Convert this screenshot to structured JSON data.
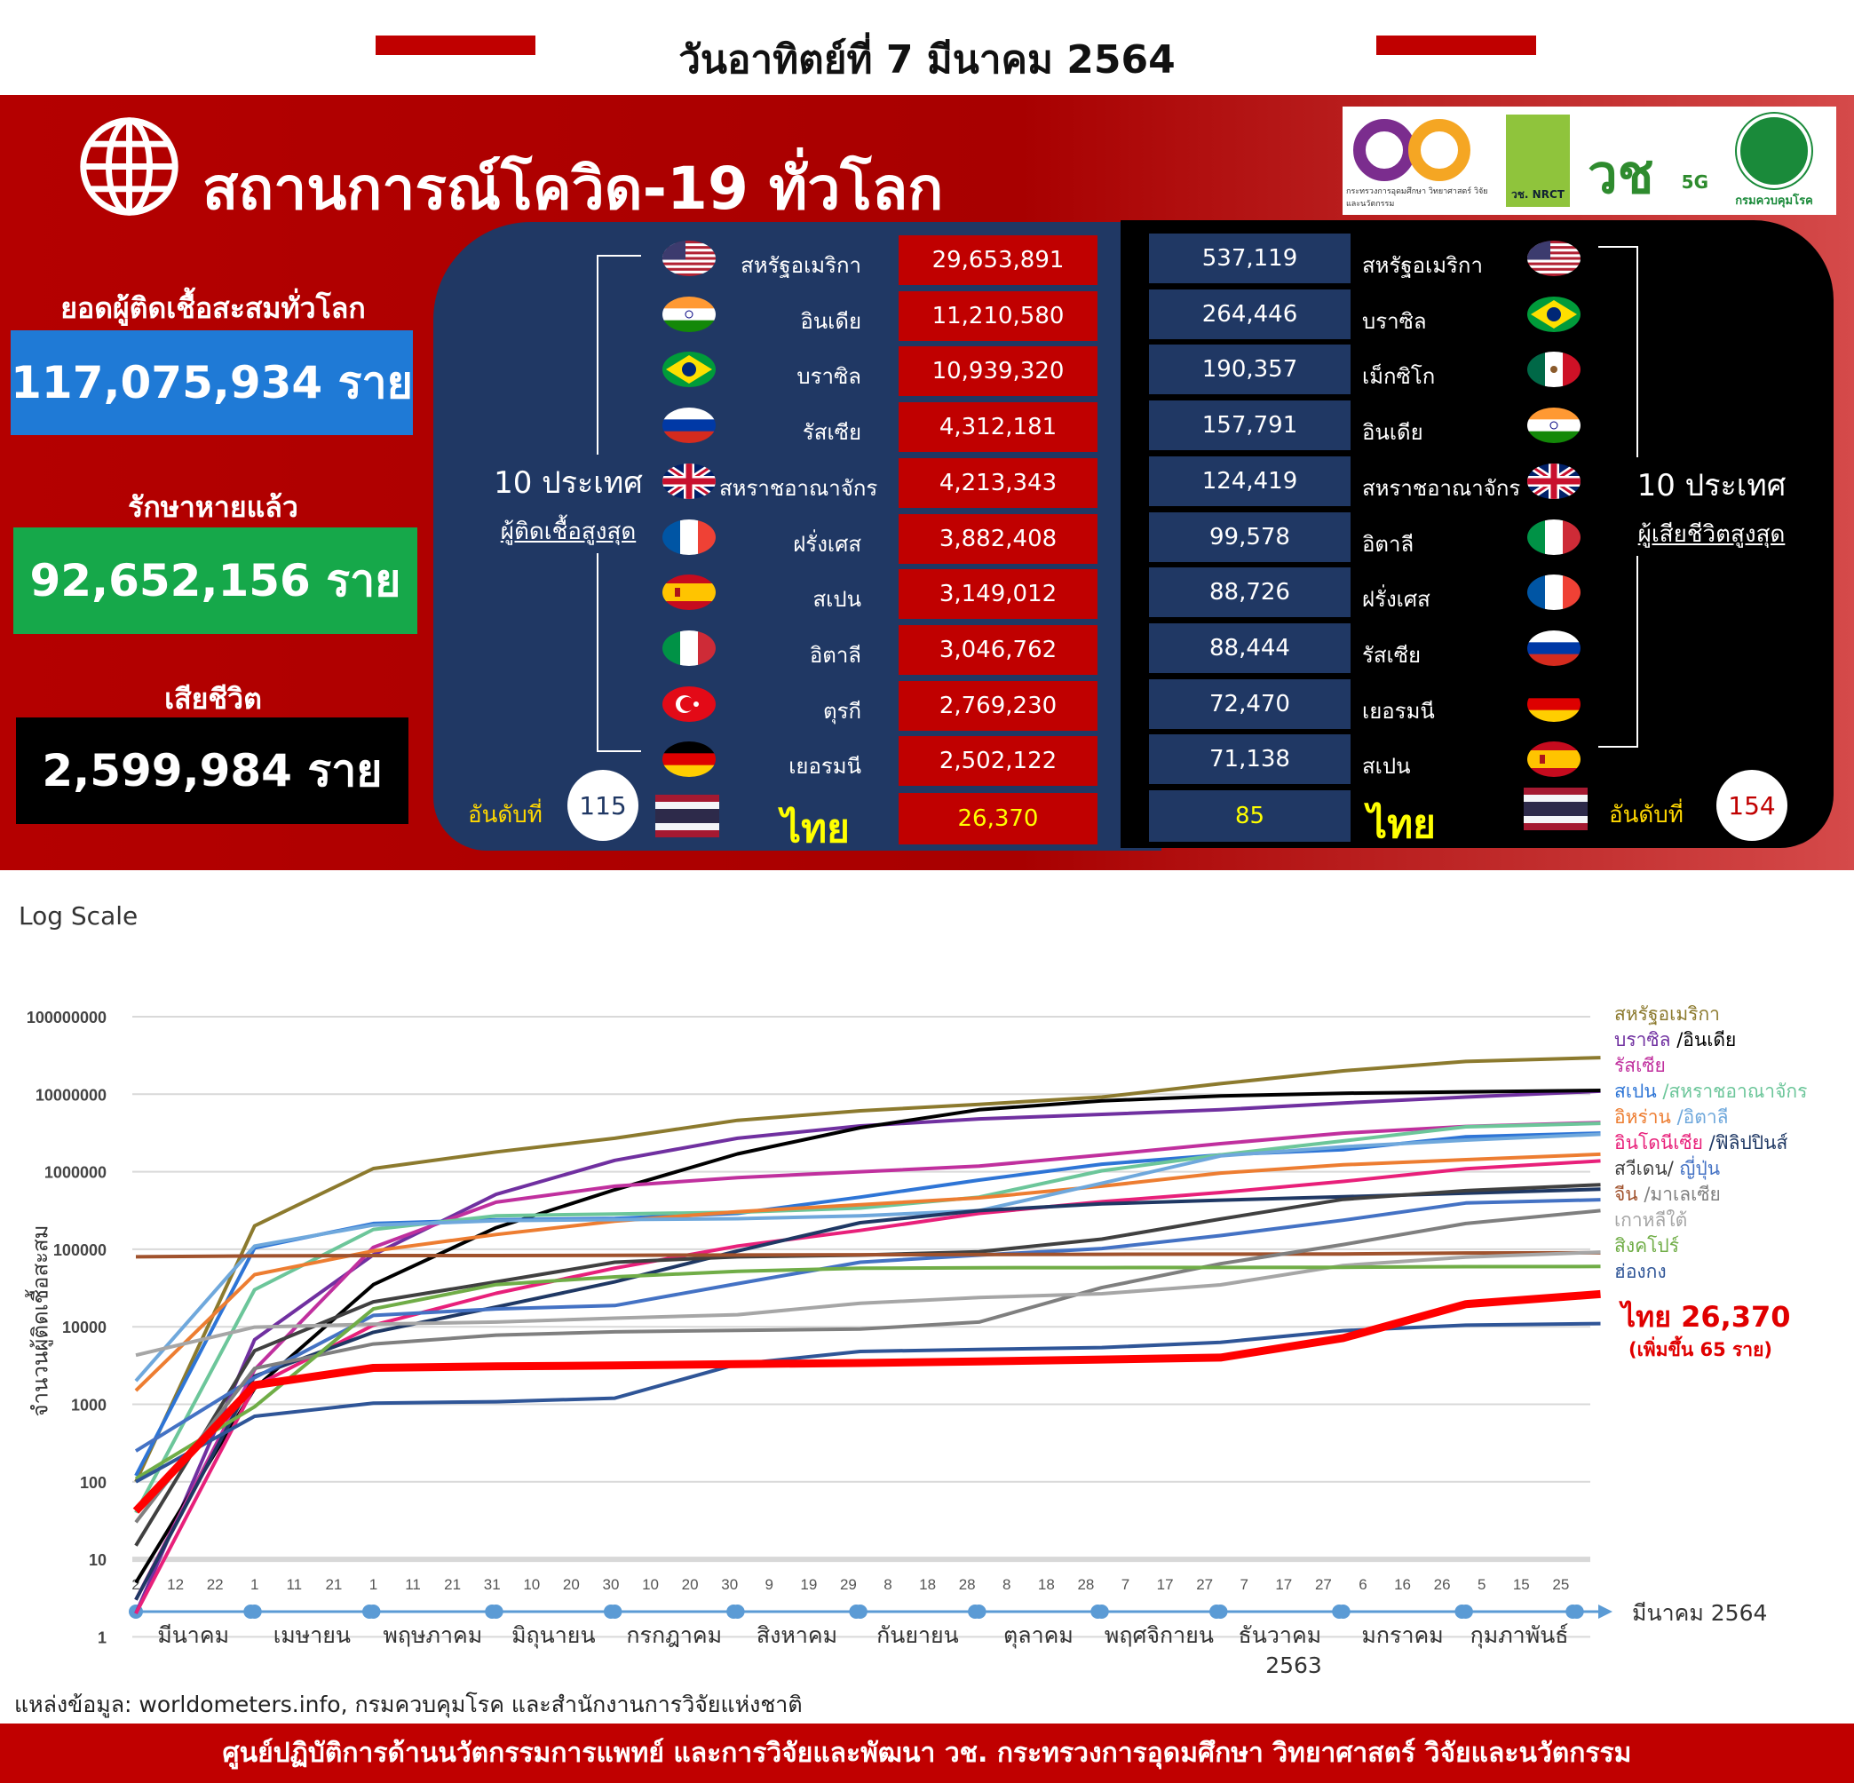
{
  "header": {
    "date": "วันอาทิตย์ที่ 7 มีนาคม 2564",
    "title": "สถานการณ์โควิด-19 ทั่วโลก",
    "accent": "#c00000"
  },
  "logos": {
    "mhesi": "กระทรวงการอุดมศึกษา วิทยาศาสตร์ วิจัยและนวัตกรรม",
    "nrct": "วช. NRCT",
    "v5g": "5G",
    "ddc": "กรมควบคุมโรค"
  },
  "world": {
    "cases_label": "ยอดผู้ติดเชื้อสะสมทั่วโลก",
    "cases": "117,075,934 ราย",
    "cases_color": "#1f7ad6",
    "recovered_label": "รักษาหายแล้ว",
    "recovered": "92,652,156 ราย",
    "recovered_color": "#16a84a",
    "deaths_label": "เสียชีวิต",
    "deaths": "2,599,984 ราย",
    "deaths_color": "#000000"
  },
  "top_cases": {
    "label_line1": "10 ประเทศ",
    "label_line2": "ผู้ติดเชื้อสูงสุด",
    "rows": [
      {
        "country": "สหรัฐอเมริกา",
        "flag": "us",
        "value": "29,653,891"
      },
      {
        "country": "อินเดีย",
        "flag": "in",
        "value": "11,210,580"
      },
      {
        "country": "บราซิล",
        "flag": "br",
        "value": "10,939,320"
      },
      {
        "country": "รัสเซีย",
        "flag": "ru",
        "value": "4,312,181"
      },
      {
        "country": "สหราชอาณาจักร",
        "flag": "gb",
        "value": "4,213,343"
      },
      {
        "country": "ฝรั่งเศส",
        "flag": "fr",
        "value": "3,882,408"
      },
      {
        "country": "สเปน",
        "flag": "es",
        "value": "3,149,012"
      },
      {
        "country": "อิตาลี",
        "flag": "it",
        "value": "3,046,762"
      },
      {
        "country": "ตุรกี",
        "flag": "tr",
        "value": "2,769,230"
      },
      {
        "country": "เยอรมนี",
        "flag": "de",
        "value": "2,502,122"
      }
    ],
    "thai": {
      "rank_label": "อันดับที่",
      "rank": "115",
      "country": "ไทย",
      "value": "26,370"
    }
  },
  "top_deaths": {
    "label_line1": "10 ประเทศ",
    "label_line2": "ผู้เสียชีวิตสูงสุด",
    "rows": [
      {
        "country": "สหรัฐอเมริกา",
        "flag": "us",
        "value": "537,119"
      },
      {
        "country": "บราซิล",
        "flag": "br",
        "value": "264,446"
      },
      {
        "country": "เม็กซิโก",
        "flag": "mx",
        "value": "190,357"
      },
      {
        "country": "อินเดีย",
        "flag": "in",
        "value": "157,791"
      },
      {
        "country": "สหราชอาณาจักร",
        "flag": "gb",
        "value": "124,419"
      },
      {
        "country": "อิตาลี",
        "flag": "it",
        "value": "99,578"
      },
      {
        "country": "ฝรั่งเศส",
        "flag": "fr",
        "value": "88,726"
      },
      {
        "country": "รัสเซีย",
        "flag": "ru",
        "value": "88,444"
      },
      {
        "country": "เยอรมนี",
        "flag": "de",
        "value": "72,470"
      },
      {
        "country": "สเปน",
        "flag": "es",
        "value": "71,138"
      }
    ],
    "thai": {
      "rank_label": "อันดับที่",
      "rank": "154",
      "country": "ไทย",
      "value": "85"
    }
  },
  "chart_data": {
    "type": "line",
    "title": "Log Scale",
    "ylabel": "จำนวนผู้ติดเชื้อสะสม",
    "yscale": "log",
    "ylim": [
      1,
      100000000
    ],
    "yticks": [
      "1",
      "10",
      "100",
      "1000",
      "10000",
      "100000",
      "1000000",
      "10000000",
      "100000000"
    ],
    "grid": true,
    "x": [
      "2020-03-02",
      "2020-04-01",
      "2020-05-01",
      "2020-06-01",
      "2020-07-01",
      "2020-08-01",
      "2020-09-01",
      "2020-10-01",
      "2020-11-01",
      "2020-12-01",
      "2021-01-01",
      "2021-02-01",
      "2021-03-07"
    ],
    "xtick_labels": [
      "2",
      "12",
      "22",
      "1",
      "11",
      "21",
      "1",
      "11",
      "21",
      "31",
      "10",
      "20",
      "30",
      "10",
      "20",
      "30",
      "9",
      "19",
      "29",
      "8",
      "18",
      "28",
      "8",
      "18",
      "28",
      "7",
      "17",
      "27",
      "7",
      "17",
      "27",
      "6",
      "16",
      "26",
      "5",
      "15",
      "25"
    ],
    "month_labels": [
      "มีนาคม",
      "เมษายน",
      "พฤษภาคม",
      "มิถุนายน",
      "กรกฎาคม",
      "สิงหาคม",
      "กันยายน",
      "ตุลาคม",
      "พฤศจิกายน",
      "ธันวาคม",
      "มกราคม",
      "กุมภาพันธ์"
    ],
    "year_label": "2563",
    "end_label": "มีนาคม 2564",
    "legend_position": "right",
    "series": [
      {
        "name": "สหรัฐอเมริกา",
        "color": "#8c7a2e",
        "values": [
          100,
          200000,
          1100000,
          1800000,
          2700000,
          4600000,
          6100000,
          7400000,
          9200000,
          13700000,
          20000000,
          26500000,
          29653891
        ]
      },
      {
        "name": "บราซิล",
        "color": "#7030a0",
        "values": [
          2,
          6800,
          85000,
          510000,
          1400000,
          2700000,
          3900000,
          4800000,
          5500000,
          6300000,
          7700000,
          9200000,
          10939320
        ]
      },
      {
        "name": "อินเดีย",
        "color": "#000000",
        "values": [
          5,
          1600,
          35000,
          190000,
          585000,
          1700000,
          3700000,
          6300000,
          8200000,
          9500000,
          10300000,
          10750000,
          11210580
        ]
      },
      {
        "name": "รัสเซีย",
        "color": "#c0309e",
        "values": [
          3,
          2800,
          106000,
          405000,
          650000,
          840000,
          1000000,
          1180000,
          1640000,
          2300000,
          3150000,
          3840000,
          4312181
        ]
      },
      {
        "name": "สเปน",
        "color": "#2e75d6",
        "values": [
          120,
          104000,
          215000,
          240000,
          250000,
          290000,
          470000,
          780000,
          1250000,
          1650000,
          1930000,
          2820000,
          3149012
        ]
      },
      {
        "name": "สหราชอาณาจักร",
        "color": "#6cc69a",
        "values": [
          40,
          30000,
          180000,
          270000,
          285000,
          300000,
          340000,
          470000,
          1030000,
          1650000,
          2500000,
          3800000,
          4213343
        ]
      },
      {
        "name": "อิหร่าน",
        "color": "#ed7d31",
        "values": [
          1500,
          47000,
          95000,
          155000,
          230000,
          305000,
          375000,
          460000,
          650000,
          960000,
          1230000,
          1430000,
          1680000
        ]
      },
      {
        "name": "อิตาลี",
        "color": "#6fa8dc",
        "values": [
          2000,
          110000,
          205000,
          233000,
          241000,
          248000,
          270000,
          315000,
          710000,
          1600000,
          2100000,
          2560000,
          3046762
        ]
      },
      {
        "name": "อินโดนีเซีย",
        "color": "#e8207a",
        "values": [
          2,
          1700,
          10500,
          27000,
          57000,
          110000,
          175000,
          290000,
          410000,
          540000,
          750000,
          1090000,
          1380000
        ]
      },
      {
        "name": "ฟิลิปปินส์",
        "color": "#1f3864",
        "values": [
          3,
          2300,
          8500,
          18000,
          38000,
          95000,
          220000,
          315000,
          385000,
          430000,
          475000,
          530000,
          594000
        ]
      },
      {
        "name": "สวีเดน",
        "color": "#404040",
        "values": [
          15,
          4900,
          21000,
          38000,
          68000,
          80000,
          84000,
          93000,
          135000,
          245000,
          440000,
          570000,
          680000
        ]
      },
      {
        "name": "ญี่ปุ่น",
        "color": "#4472c4",
        "values": [
          250,
          2200,
          14000,
          17000,
          18800,
          36000,
          68000,
          84000,
          102000,
          150000,
          237000,
          395000,
          436000
        ]
      },
      {
        "name": "จีน",
        "color": "#a0522d",
        "values": [
          80000,
          82000,
          83000,
          83000,
          83500,
          84300,
          85000,
          85400,
          86000,
          86500,
          87000,
          89500,
          90000
        ]
      },
      {
        "name": "มาเลเซีย",
        "color": "#7f7f7f",
        "values": [
          30,
          2900,
          6000,
          7800,
          8600,
          8990,
          9340,
          11500,
          32000,
          65000,
          115000,
          215000,
          315000
        ]
      },
      {
        "name": "เกาหลีใต้",
        "color": "#a6a6a6",
        "values": [
          4300,
          9900,
          10800,
          11500,
          12900,
          14300,
          20100,
          23800,
          26700,
          34700,
          61700,
          79000,
          92000
        ]
      },
      {
        "name": "สิงคโปร์",
        "color": "#70ad47",
        "values": [
          110,
          930,
          17000,
          35000,
          44000,
          52000,
          56800,
          57700,
          58000,
          58200,
          58500,
          59600,
          60000
        ]
      },
      {
        "name": "ฮ่องกง",
        "color": "#2f5597",
        "values": [
          100,
          700,
          1035,
          1080,
          1200,
          3300,
          4800,
          5100,
          5400,
          6300,
          8900,
          10500,
          11000
        ]
      },
      {
        "name": "ไทย",
        "color": "#ff0000",
        "values": [
          42,
          1770,
          2950,
          3080,
          3170,
          3300,
          3410,
          3570,
          3780,
          4000,
          7160,
          19600,
          26370
        ]
      }
    ],
    "legend": [
      [
        {
          "text": "สหรัฐอเมริกา",
          "color": "#8c7a2e"
        }
      ],
      [
        {
          "text": "บราซิล ",
          "color": "#7030a0"
        },
        {
          "text": "/อินเดีย",
          "color": "#000000"
        }
      ],
      [
        {
          "text": "รัสเซีย",
          "color": "#c0309e"
        }
      ],
      [
        {
          "text": "สเปน ",
          "color": "#2e75d6"
        },
        {
          "text": "/สหราชอาณาจักร",
          "color": "#6cc69a"
        }
      ],
      [
        {
          "text": "อิหร่าน ",
          "color": "#ed7d31"
        },
        {
          "text": "/อิตาลี",
          "color": "#6fa8dc"
        }
      ],
      [
        {
          "text": "อินโดนีเซีย ",
          "color": "#e8207a"
        },
        {
          "text": "/ฟิลิปปินส์",
          "color": "#1f3864"
        }
      ],
      [
        {
          "text": "สวีเดน/ ",
          "color": "#404040"
        },
        {
          "text": "ญี่ปุ่น",
          "color": "#4472c4"
        }
      ],
      [
        {
          "text": "จีน ",
          "color": "#a0522d"
        },
        {
          "text": "/มาเลเซีย",
          "color": "#7f7f7f"
        }
      ],
      [
        {
          "text": "เกาหลีใต้",
          "color": "#a6a6a6"
        }
      ],
      [
        {
          "text": "สิงคโปร์",
          "color": "#70ad47"
        }
      ],
      [
        {
          "text": "ฮ่องกง",
          "color": "#2f5597"
        }
      ]
    ],
    "thai_annotation": "ไทย 26,370",
    "thai_increase": "(เพิ่มขึ้น 65 ราย)"
  },
  "source": "แหล่งข้อมูล: worldometers.info, กรมควบคุมโรค และสำนักงานการวิจัยแห่งชาติ",
  "footer": "ศูนย์ปฏิบัติการด้านนวัตกรรมการแพทย์ และการวิจัยและพัฒนา  วช.   กระทรวงการอุดมศึกษา วิทยาศาสตร์ วิจัยและนวัตกรรม"
}
